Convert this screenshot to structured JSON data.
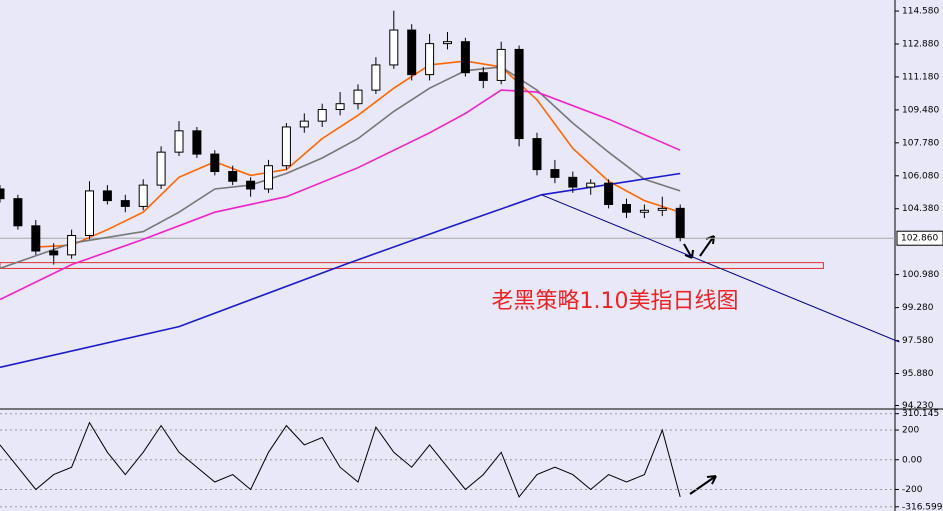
{
  "chart_data": [
    {
      "type": "candlestick",
      "annotation": "老黑策略1.10美指日线图",
      "xlim": [
        0,
        200
      ],
      "ylim": [
        94.1,
        115.15
      ],
      "yticks": [
        {
          "value": 114.58,
          "label": "114.580"
        },
        {
          "value": 112.88,
          "label": "112.880"
        },
        {
          "value": 111.18,
          "label": "111.180"
        },
        {
          "value": 109.48,
          "label": "109.480"
        },
        {
          "value": 107.78,
          "label": "107.780"
        },
        {
          "value": 106.08,
          "label": "106.080"
        },
        {
          "value": 104.38,
          "label": "104.380"
        },
        {
          "value": 100.98,
          "label": "100.980"
        },
        {
          "value": 99.28,
          "label": "99.280"
        },
        {
          "value": 97.58,
          "label": "97.580"
        },
        {
          "value": 95.88,
          "label": "95.880"
        },
        {
          "value": 94.23,
          "label": "94.230"
        }
      ],
      "last_price": {
        "value": 102.86,
        "label": "102.860"
      },
      "x": [
        0,
        4,
        8,
        12,
        16,
        20,
        24,
        28,
        32,
        36,
        40,
        44,
        48,
        52,
        56,
        60,
        64,
        68,
        72,
        76,
        80,
        84,
        88,
        92,
        96,
        100,
        104,
        108,
        112,
        116,
        120,
        124,
        128,
        132,
        136,
        140,
        144,
        148,
        152
      ],
      "open": [
        105.4,
        104.9,
        103.5,
        102.2,
        102.0,
        103.0,
        105.3,
        104.8,
        104.5,
        105.6,
        107.3,
        108.4,
        107.2,
        106.3,
        105.8,
        105.4,
        106.6,
        108.6,
        108.9,
        109.5,
        109.8,
        110.5,
        111.8,
        113.6,
        111.3,
        112.9,
        113.0,
        111.4,
        111.0,
        112.6,
        108.0,
        106.4,
        106.0,
        105.5,
        105.7,
        104.6,
        104.2,
        104.3,
        104.4
      ],
      "high": [
        105.6,
        105.1,
        103.8,
        102.6,
        103.3,
        105.8,
        105.6,
        105.1,
        105.9,
        107.6,
        108.9,
        108.6,
        107.4,
        106.6,
        106.0,
        106.9,
        108.8,
        109.3,
        109.8,
        110.4,
        110.8,
        112.2,
        114.6,
        113.9,
        113.4,
        113.5,
        113.2,
        111.7,
        113.0,
        112.8,
        108.3,
        106.9,
        106.3,
        105.9,
        105.9,
        104.9,
        104.6,
        105.0,
        104.6
      ],
      "low": [
        104.7,
        103.3,
        102.0,
        101.5,
        101.8,
        102.8,
        104.6,
        104.2,
        104.3,
        105.4,
        107.1,
        107.0,
        106.1,
        105.6,
        105.0,
        105.2,
        106.4,
        108.3,
        108.6,
        109.2,
        109.5,
        110.3,
        111.6,
        111.0,
        111.0,
        112.6,
        111.2,
        110.6,
        110.8,
        107.6,
        106.1,
        105.7,
        105.2,
        105.1,
        104.4,
        103.9,
        103.9,
        104.0,
        102.7
      ],
      "close": [
        104.9,
        103.5,
        102.2,
        102.0,
        103.0,
        105.3,
        104.8,
        104.5,
        105.6,
        107.3,
        108.4,
        107.2,
        106.3,
        105.8,
        105.4,
        106.6,
        108.6,
        108.9,
        109.5,
        109.8,
        110.5,
        111.8,
        113.6,
        111.3,
        112.9,
        113.0,
        111.4,
        111.0,
        112.6,
        108.0,
        106.4,
        106.0,
        105.5,
        105.7,
        104.6,
        104.2,
        104.3,
        104.4,
        102.9
      ],
      "overlays": [
        {
          "color": "#ff6600",
          "x": [
            8,
            16,
            24,
            32,
            40,
            48,
            56,
            64,
            72,
            80,
            88,
            96,
            104,
            112,
            120,
            128,
            136,
            144,
            152
          ],
          "values": [
            102.4,
            102.5,
            103.3,
            104.2,
            106.0,
            106.8,
            106.1,
            106.4,
            108.0,
            109.2,
            110.6,
            111.8,
            112.0,
            111.7,
            110.0,
            107.5,
            105.8,
            104.8,
            104.2
          ]
        },
        {
          "color": "#777777",
          "x": [
            0,
            16,
            32,
            40,
            48,
            56,
            64,
            72,
            80,
            88,
            96,
            104,
            112,
            120,
            128,
            136,
            144,
            152
          ],
          "values": [
            101.3,
            102.6,
            103.2,
            104.2,
            105.4,
            105.6,
            106.2,
            107.0,
            108.0,
            109.4,
            110.6,
            111.5,
            111.7,
            110.5,
            108.8,
            107.3,
            105.9,
            105.3
          ]
        },
        {
          "color": "#ee22cc",
          "x": [
            0,
            16,
            32,
            48,
            64,
            80,
            96,
            104,
            112,
            120,
            136,
            152
          ],
          "values": [
            99.7,
            101.5,
            102.8,
            104.2,
            105.0,
            106.5,
            108.3,
            109.3,
            110.5,
            110.4,
            109.0,
            107.4
          ]
        },
        {
          "color": "#1a1acc",
          "x": [
            0,
            40,
            77,
            100,
            121,
            152
          ],
          "values": [
            96.2,
            98.3,
            101.5,
            103.4,
            105.1,
            106.2
          ]
        }
      ],
      "trendline": {
        "color": "#00008b",
        "x": [
          121,
          201
        ],
        "values": [
          105.1,
          97.5
        ]
      },
      "zone": {
        "color": "#e03030",
        "x": [
          0,
          184
        ],
        "values": [
          101.3,
          101.6
        ]
      }
    },
    {
      "type": "line",
      "xlim": [
        0,
        200
      ],
      "ylim": [
        -345,
        335
      ],
      "yticks": [
        310.145,
        200,
        {
          "value": 0,
          "label": "0.00"
        },
        -200,
        -316.599
      ],
      "color": "#000000",
      "x": [
        0,
        4,
        8,
        12,
        16,
        20,
        24,
        28,
        32,
        36,
        40,
        44,
        48,
        52,
        56,
        60,
        64,
        68,
        72,
        76,
        80,
        84,
        88,
        92,
        96,
        100,
        104,
        108,
        112,
        116,
        120,
        124,
        128,
        132,
        136,
        140,
        144,
        148,
        152
      ],
      "values": [
        100,
        -50,
        -200,
        -100,
        -50,
        250,
        50,
        -100,
        50,
        230,
        50,
        -50,
        -150,
        -100,
        -200,
        50,
        230,
        100,
        150,
        -50,
        -150,
        220,
        50,
        -50,
        100,
        -50,
        -200,
        -100,
        50,
        -250,
        -100,
        -50,
        -100,
        -200,
        -100,
        -150,
        -100,
        200,
        -250
      ]
    }
  ]
}
